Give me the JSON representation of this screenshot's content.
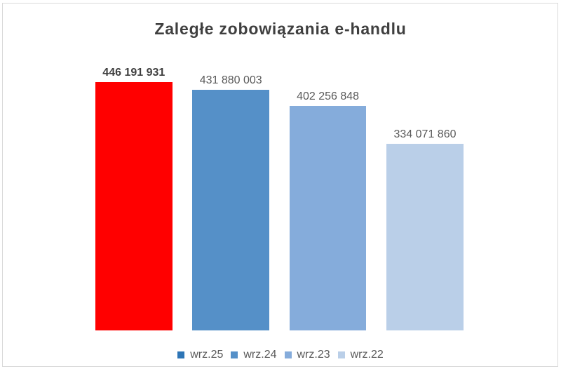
{
  "window": {
    "background_color": "#ffffff",
    "frame_border_color": "#d9d9d9"
  },
  "chart_data": {
    "type": "bar",
    "title": "Zaległe zobowiązania e-handlu",
    "title_color": "#3f3f3f",
    "categories": [
      "wrz.25",
      "wrz.24",
      "wrz.23",
      "wrz.22"
    ],
    "values": [
      446191931,
      431880003,
      402256848,
      334071860
    ],
    "value_labels": [
      "446 191 931",
      "431 880 003",
      "402 256 848",
      "334 071 860"
    ],
    "value_label_bold": [
      true,
      false,
      false,
      false
    ],
    "value_label_colors": [
      "#3f3f3f",
      "#595959",
      "#595959",
      "#595959"
    ],
    "bar_colors": [
      "#ff0000",
      "#5590c8",
      "#85acdb",
      "#bacfe8"
    ],
    "legend": {
      "position": "bottom",
      "text_color": "#595959",
      "entries": [
        {
          "label": "wrz.25",
          "color": "#2e75b6"
        },
        {
          "label": "wrz.24",
          "color": "#5590c8"
        },
        {
          "label": "wrz.23",
          "color": "#85acdb"
        },
        {
          "label": "wrz.22",
          "color": "#bacfe8"
        }
      ]
    },
    "grid": false,
    "axes_visible": false,
    "ylim": [
      0,
      446191931
    ]
  }
}
